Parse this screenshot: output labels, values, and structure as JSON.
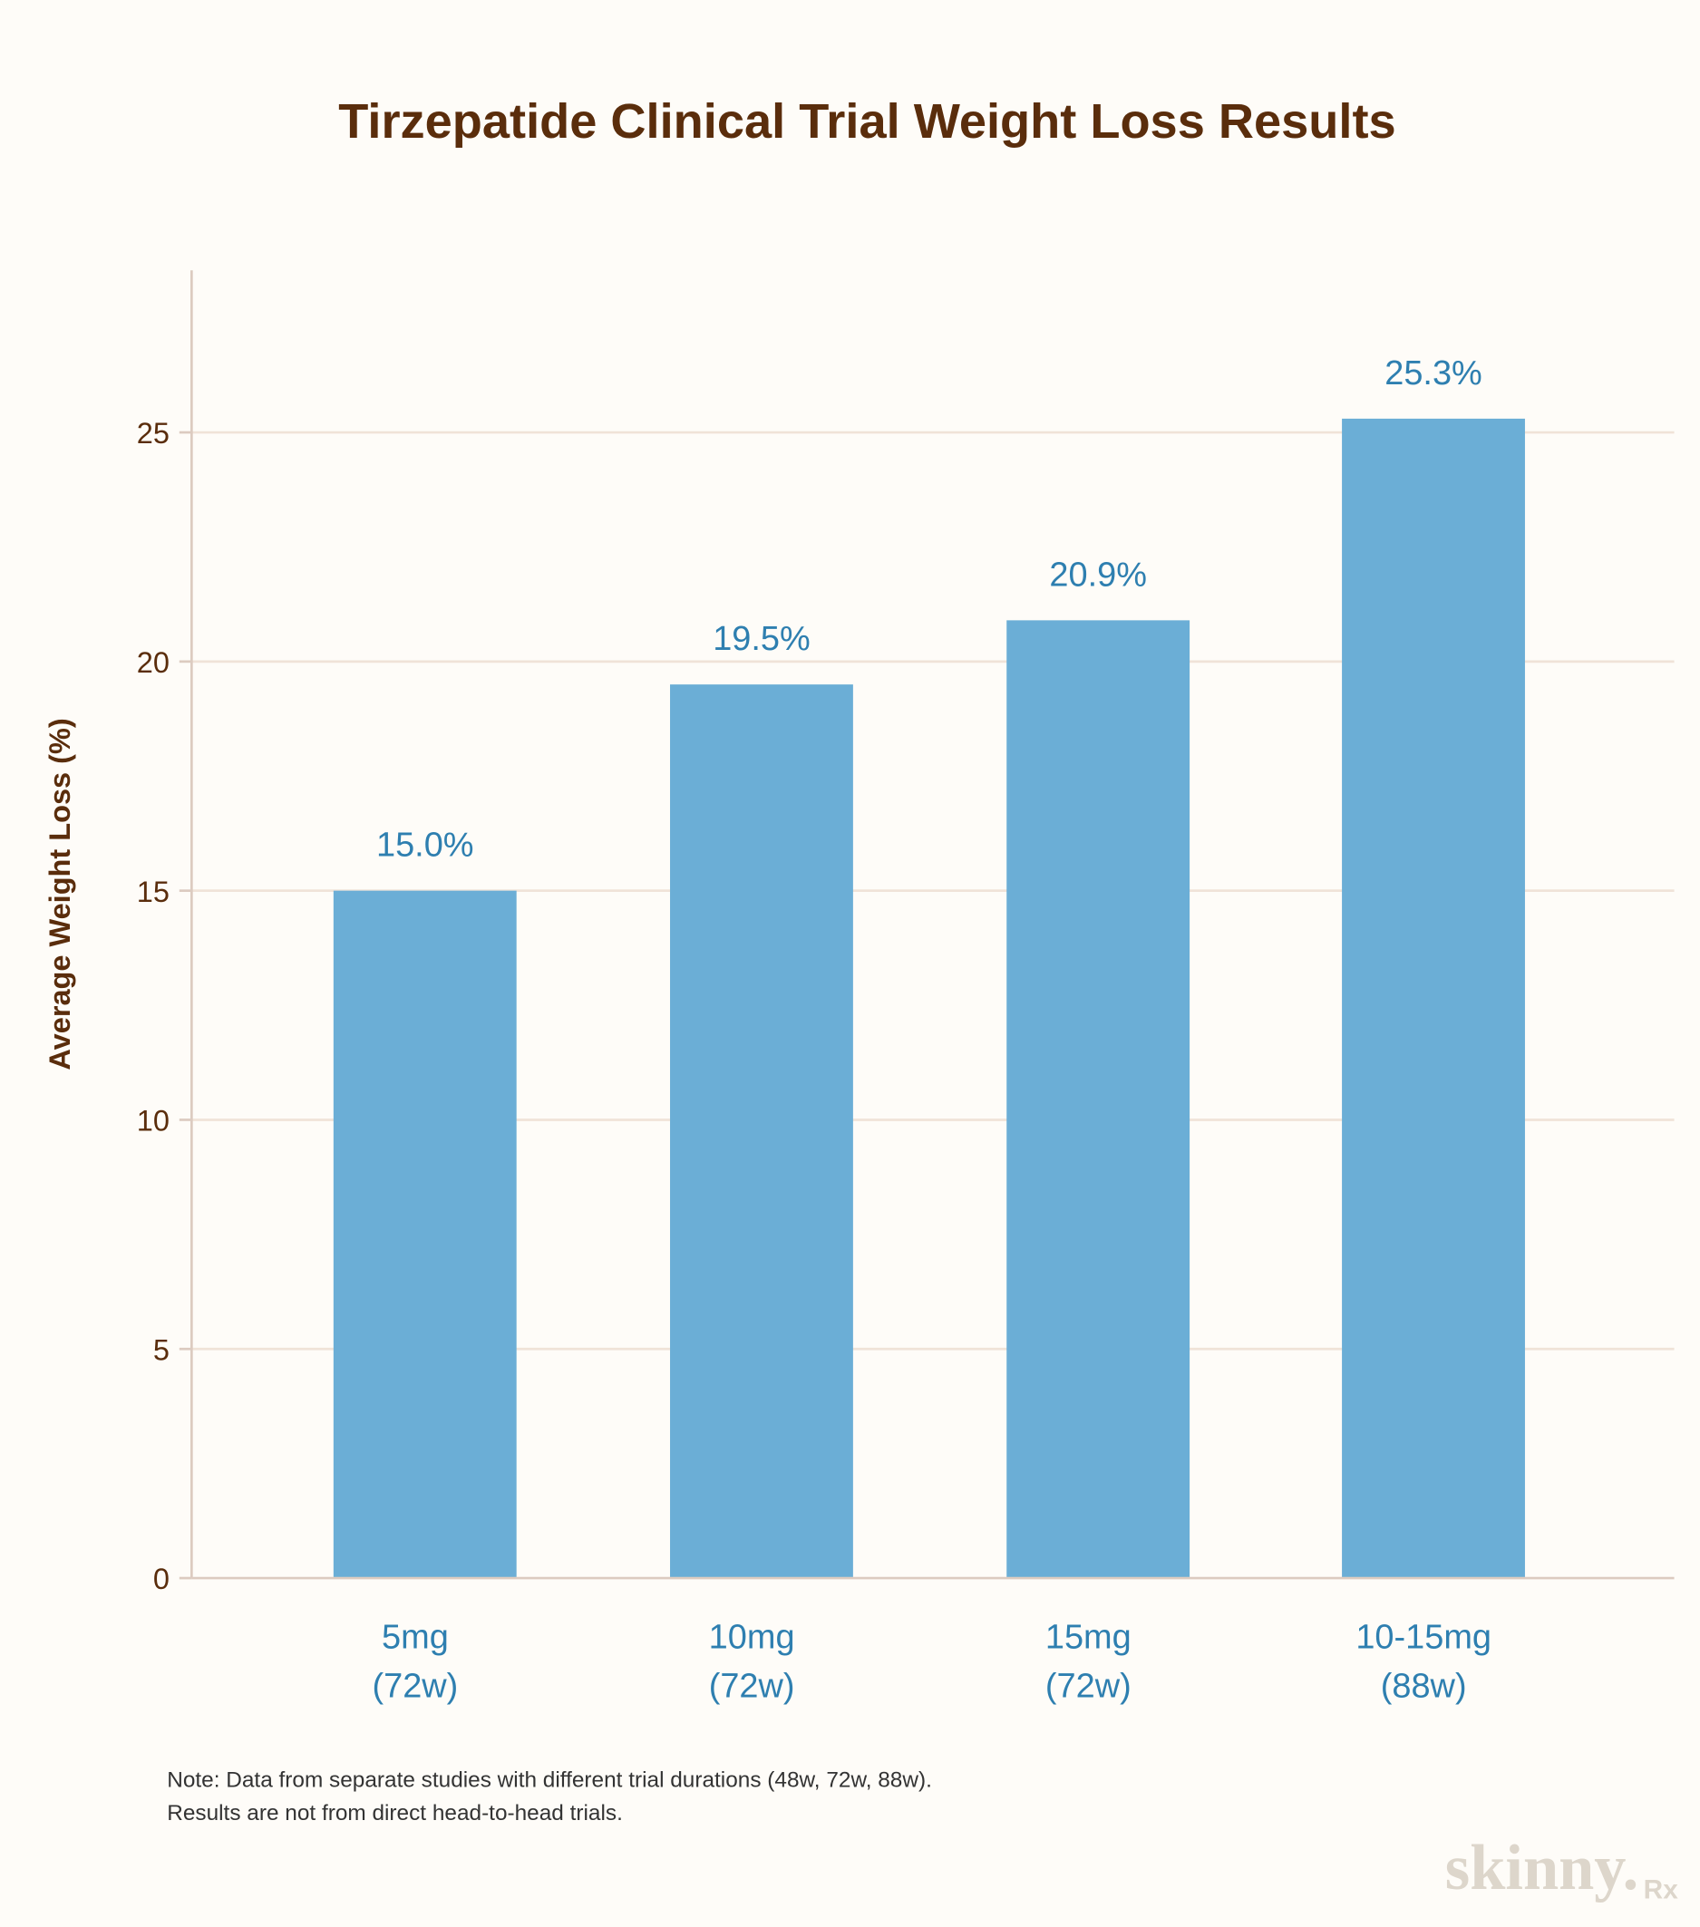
{
  "chart_data": {
    "type": "bar",
    "title": "Tirzepatide Clinical Trial Weight Loss Results",
    "xlabel": "",
    "ylabel": "Average Weight Loss (%)",
    "categories": [
      [
        "5mg",
        "(72w)"
      ],
      [
        "10mg",
        "(72w)"
      ],
      [
        "15mg",
        "(72w)"
      ],
      [
        "10-15mg",
        "(88w)"
      ]
    ],
    "values": [
      15.0,
      19.5,
      20.9,
      25.3
    ],
    "data_labels": [
      "15.0%",
      "19.5%",
      "20.9%",
      "25.3%"
    ],
    "yticks": [
      0,
      5,
      10,
      15,
      20,
      25
    ],
    "ylim": [
      0,
      28.5
    ],
    "grid": true,
    "bar_color": "#6baed6",
    "label_color": "#2e7fb0",
    "title_color": "#5a2d0c"
  },
  "note": {
    "line1": "Note: Data from separate studies with different trial durations (48w, 72w, 88w).",
    "line2": "Results are not from direct head-to-head trials."
  },
  "logo": {
    "text": "skinny.",
    "suffix": "Rx"
  }
}
